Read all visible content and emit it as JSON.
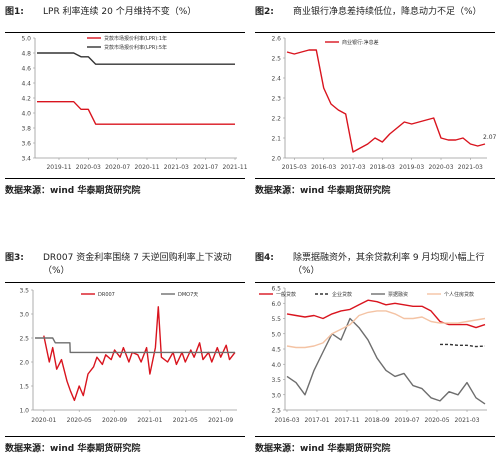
{
  "source_text": "数据来源：wind 华泰期货研究院",
  "colors": {
    "red": "#d9141e",
    "gray": "#6e6e6e",
    "dark": "#333333",
    "peach": "#f4c3a4"
  },
  "chart_data": [
    {
      "fig_label": "图1:",
      "title": "LPR 利率连续 20 个月维持不变（%）",
      "type": "line",
      "x_ticks": [
        "2019-11",
        "2020-03",
        "2020-07",
        "2020-11",
        "2021-03",
        "2021-07",
        "2021-11"
      ],
      "ylim": [
        3.4,
        5.0
      ],
      "y_ticks": [
        "3.4",
        "3.6",
        "3.8",
        "4.0",
        "4.2",
        "4.4",
        "4.6",
        "4.8",
        "5.0"
      ],
      "legend_position": "top-center",
      "series": [
        {
          "name": "贷款市场报价利率(LPR):1年",
          "color": "red",
          "points": [
            [
              "2019-08",
              4.15
            ],
            [
              "2019-11",
              4.15
            ],
            [
              "2019-12",
              4.15
            ],
            [
              "2020-01",
              4.15
            ],
            [
              "2020-02",
              4.05
            ],
            [
              "2020-03",
              4.05
            ],
            [
              "2020-04",
              3.85
            ],
            [
              "2020-07",
              3.85
            ],
            [
              "2020-11",
              3.85
            ],
            [
              "2021-03",
              3.85
            ],
            [
              "2021-07",
              3.85
            ],
            [
              "2021-11",
              3.85
            ]
          ]
        },
        {
          "name": "贷款市场报价利率(LPR):5年",
          "color": "dark",
          "points": [
            [
              "2019-08",
              4.8
            ],
            [
              "2019-11",
              4.8
            ],
            [
              "2019-12",
              4.8
            ],
            [
              "2020-01",
              4.8
            ],
            [
              "2020-02",
              4.75
            ],
            [
              "2020-03",
              4.75
            ],
            [
              "2020-04",
              4.65
            ],
            [
              "2020-07",
              4.65
            ],
            [
              "2020-11",
              4.65
            ],
            [
              "2021-03",
              4.65
            ],
            [
              "2021-07",
              4.65
            ],
            [
              "2021-11",
              4.65
            ]
          ]
        }
      ]
    },
    {
      "fig_label": "图2:",
      "title": "商业银行净息差持续低位，降息动力不足（%）",
      "type": "line",
      "x_ticks": [
        "2015-03",
        "2016-03",
        "2017-03",
        "2018-03",
        "2019-03",
        "2020-03",
        "2021-03"
      ],
      "ylim": [
        2.0,
        2.6
      ],
      "y_ticks": [
        "2.0",
        "2.1",
        "2.2",
        "2.3",
        "2.4",
        "2.5",
        "2.6"
      ],
      "legend_position": "top-center",
      "end_label": "2.07",
      "series": [
        {
          "name": "商业银行:净息差",
          "color": "red",
          "points": [
            [
              "2014-12",
              2.53
            ],
            [
              "2015-03",
              2.52
            ],
            [
              "2015-06",
              2.53
            ],
            [
              "2015-09",
              2.54
            ],
            [
              "2015-12",
              2.54
            ],
            [
              "2016-03",
              2.35
            ],
            [
              "2016-06",
              2.27
            ],
            [
              "2016-09",
              2.24
            ],
            [
              "2016-12",
              2.22
            ],
            [
              "2017-03",
              2.03
            ],
            [
              "2017-06",
              2.05
            ],
            [
              "2017-09",
              2.07
            ],
            [
              "2017-12",
              2.1
            ],
            [
              "2018-03",
              2.08
            ],
            [
              "2018-06",
              2.12
            ],
            [
              "2018-09",
              2.15
            ],
            [
              "2018-12",
              2.18
            ],
            [
              "2019-03",
              2.17
            ],
            [
              "2019-06",
              2.18
            ],
            [
              "2019-09",
              2.19
            ],
            [
              "2019-12",
              2.2
            ],
            [
              "2020-03",
              2.1
            ],
            [
              "2020-06",
              2.09
            ],
            [
              "2020-09",
              2.09
            ],
            [
              "2020-12",
              2.1
            ],
            [
              "2021-03",
              2.07
            ],
            [
              "2021-06",
              2.06
            ],
            [
              "2021-09",
              2.07
            ]
          ]
        }
      ]
    },
    {
      "fig_label": "图3:",
      "title": "DR007 资金利率围绕 7 天逆回购利率上下波动（%）",
      "type": "line",
      "x_ticks": [
        "2020-01",
        "2020-05",
        "2020-09",
        "2021-01",
        "2021-05",
        "2021-09"
      ],
      "ylim": [
        1.0,
        3.5
      ],
      "y_ticks": [
        "1.0",
        "1.5",
        "2.0",
        "2.5",
        "3.0",
        "3.5"
      ],
      "legend_position": "top-center",
      "series": [
        {
          "name": "DR007",
          "color": "red",
          "points": [
            [
              "2020-01",
              2.55
            ],
            [
              "2020-01-20",
              2.0
            ],
            [
              "2020-02",
              2.3
            ],
            [
              "2020-02-15",
              1.85
            ],
            [
              "2020-03",
              2.05
            ],
            [
              "2020-03-20",
              1.6
            ],
            [
              "2020-04",
              1.4
            ],
            [
              "2020-04-15",
              1.2
            ],
            [
              "2020-05",
              1.5
            ],
            [
              "2020-05-15",
              1.3
            ],
            [
              "2020-06",
              1.75
            ],
            [
              "2020-06-20",
              1.9
            ],
            [
              "2020-07",
              2.1
            ],
            [
              "2020-07-20",
              1.95
            ],
            [
              "2020-08",
              2.15
            ],
            [
              "2020-08-20",
              2.05
            ],
            [
              "2020-09",
              2.25
            ],
            [
              "2020-09-20",
              2.1
            ],
            [
              "2020-10",
              2.3
            ],
            [
              "2020-10-20",
              2.0
            ],
            [
              "2020-11",
              2.2
            ],
            [
              "2020-11-20",
              2.15
            ],
            [
              "2020-12",
              2.0
            ],
            [
              "2020-12-20",
              2.3
            ],
            [
              "2021-01",
              1.75
            ],
            [
              "2021-01-20",
              2.3
            ],
            [
              "2021-01-30",
              3.15
            ],
            [
              "2021-02-10",
              2.1
            ],
            [
              "2021-03",
              2.0
            ],
            [
              "2021-03-20",
              2.2
            ],
            [
              "2021-04",
              1.95
            ],
            [
              "2021-04-20",
              2.2
            ],
            [
              "2021-05",
              2.0
            ],
            [
              "2021-05-20",
              2.25
            ],
            [
              "2021-06",
              2.1
            ],
            [
              "2021-06-20",
              2.4
            ],
            [
              "2021-07",
              2.05
            ],
            [
              "2021-07-20",
              2.2
            ],
            [
              "2021-08",
              2.0
            ],
            [
              "2021-08-20",
              2.3
            ],
            [
              "2021-09",
              2.1
            ],
            [
              "2021-09-20",
              2.35
            ],
            [
              "2021-10",
              2.05
            ],
            [
              "2021-10-20",
              2.2
            ]
          ]
        },
        {
          "name": "DMO7天",
          "color": "gray",
          "points": [
            [
              "2019-12",
              2.5
            ],
            [
              "2020-02",
              2.5
            ],
            [
              "2020-02-10",
              2.4
            ],
            [
              "2020-03-30",
              2.4
            ],
            [
              "2020-03-31",
              2.2
            ],
            [
              "2021-10-20",
              2.2
            ]
          ]
        }
      ]
    },
    {
      "fig_label": "图4:",
      "title": "除票据融资外，其余贷款利率 9 月均现小幅上行（%）",
      "type": "line",
      "x_ticks": [
        "2016-03",
        "2017-01",
        "2017-11",
        "2018-09",
        "2019-07",
        "2020-05",
        "2021-03"
      ],
      "ylim": [
        2.5,
        6.5
      ],
      "y_ticks": [
        "2.5",
        "3.0",
        "3.5",
        "4.0",
        "4.5",
        "5.0",
        "5.5",
        "6.0",
        "6.5"
      ],
      "legend_position": "top",
      "series": [
        {
          "name": "一般贷款",
          "color": "red",
          "points": [
            [
              "2016-03",
              5.65
            ],
            [
              "2016-06",
              5.6
            ],
            [
              "2016-09",
              5.55
            ],
            [
              "2016-12",
              5.6
            ],
            [
              "2017-03",
              5.5
            ],
            [
              "2017-06",
              5.65
            ],
            [
              "2017-09",
              5.75
            ],
            [
              "2017-12",
              5.8
            ],
            [
              "2018-03",
              5.95
            ],
            [
              "2018-06",
              6.1
            ],
            [
              "2018-09",
              6.05
            ],
            [
              "2018-12",
              5.95
            ],
            [
              "2019-03",
              6.0
            ],
            [
              "2019-06",
              5.95
            ],
            [
              "2019-09",
              5.9
            ],
            [
              "2019-12",
              5.9
            ],
            [
              "2020-03",
              5.75
            ],
            [
              "2020-06",
              5.4
            ],
            [
              "2020-09",
              5.3
            ],
            [
              "2020-12",
              5.3
            ],
            [
              "2021-03",
              5.3
            ],
            [
              "2021-06",
              5.2
            ],
            [
              "2021-09",
              5.3
            ]
          ]
        },
        {
          "name": "企业贷款",
          "color": "dark",
          "dashed": true,
          "points": [
            [
              "2020-06",
              4.65
            ],
            [
              "2020-09",
              4.65
            ],
            [
              "2020-12",
              4.62
            ],
            [
              "2021-03",
              4.62
            ],
            [
              "2021-06",
              4.58
            ],
            [
              "2021-09",
              4.6
            ]
          ]
        },
        {
          "name": "票据融资",
          "color": "gray",
          "points": [
            [
              "2016-03",
              3.6
            ],
            [
              "2016-06",
              3.4
            ],
            [
              "2016-09",
              3.0
            ],
            [
              "2016-12",
              3.8
            ],
            [
              "2017-03",
              4.4
            ],
            [
              "2017-06",
              5.0
            ],
            [
              "2017-09",
              4.8
            ],
            [
              "2017-12",
              5.5
            ],
            [
              "2018-03",
              5.2
            ],
            [
              "2018-06",
              4.8
            ],
            [
              "2018-09",
              4.2
            ],
            [
              "2018-12",
              3.8
            ],
            [
              "2019-03",
              3.6
            ],
            [
              "2019-06",
              3.7
            ],
            [
              "2019-09",
              3.3
            ],
            [
              "2019-12",
              3.2
            ],
            [
              "2020-03",
              2.9
            ],
            [
              "2020-06",
              2.8
            ],
            [
              "2020-09",
              3.1
            ],
            [
              "2020-12",
              3.0
            ],
            [
              "2021-03",
              3.4
            ],
            [
              "2021-06",
              2.9
            ],
            [
              "2021-09",
              2.7
            ]
          ]
        },
        {
          "name": "个人住房贷款",
          "color": "peach",
          "points": [
            [
              "2016-03",
              4.6
            ],
            [
              "2016-06",
              4.55
            ],
            [
              "2016-09",
              4.55
            ],
            [
              "2016-12",
              4.6
            ],
            [
              "2017-03",
              4.7
            ],
            [
              "2017-06",
              5.0
            ],
            [
              "2017-09",
              5.15
            ],
            [
              "2017-12",
              5.3
            ],
            [
              "2018-03",
              5.6
            ],
            [
              "2018-06",
              5.7
            ],
            [
              "2018-09",
              5.75
            ],
            [
              "2018-12",
              5.75
            ],
            [
              "2019-03",
              5.65
            ],
            [
              "2019-06",
              5.5
            ],
            [
              "2019-09",
              5.5
            ],
            [
              "2019-12",
              5.55
            ],
            [
              "2020-03",
              5.4
            ],
            [
              "2020-06",
              5.35
            ],
            [
              "2020-09",
              5.35
            ],
            [
              "2020-12",
              5.35
            ],
            [
              "2021-03",
              5.4
            ],
            [
              "2021-06",
              5.45
            ],
            [
              "2021-09",
              5.5
            ]
          ]
        }
      ]
    }
  ]
}
